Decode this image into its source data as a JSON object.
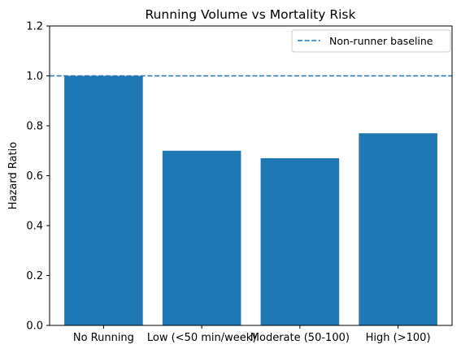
{
  "chart_data": {
    "type": "bar",
    "title": "Running Volume vs Mortality Risk",
    "xlabel": "",
    "ylabel": "Hazard Ratio",
    "categories": [
      "No Running",
      "Low (<50 min/week)",
      "Moderate (50-100)",
      "High (>100)"
    ],
    "values": [
      1.0,
      0.7,
      0.67,
      0.77
    ],
    "ylim": [
      0,
      1.2
    ],
    "yticks": [
      "0.0",
      "0.2",
      "0.4",
      "0.6",
      "0.8",
      "1.0",
      "1.2"
    ],
    "bar_color": "#1f77b4",
    "baseline": {
      "value": 1.0,
      "style": "dashed",
      "color": "#1f77b4",
      "label": "Non-runner baseline"
    },
    "legend_position": "top-right",
    "grid": false
  }
}
